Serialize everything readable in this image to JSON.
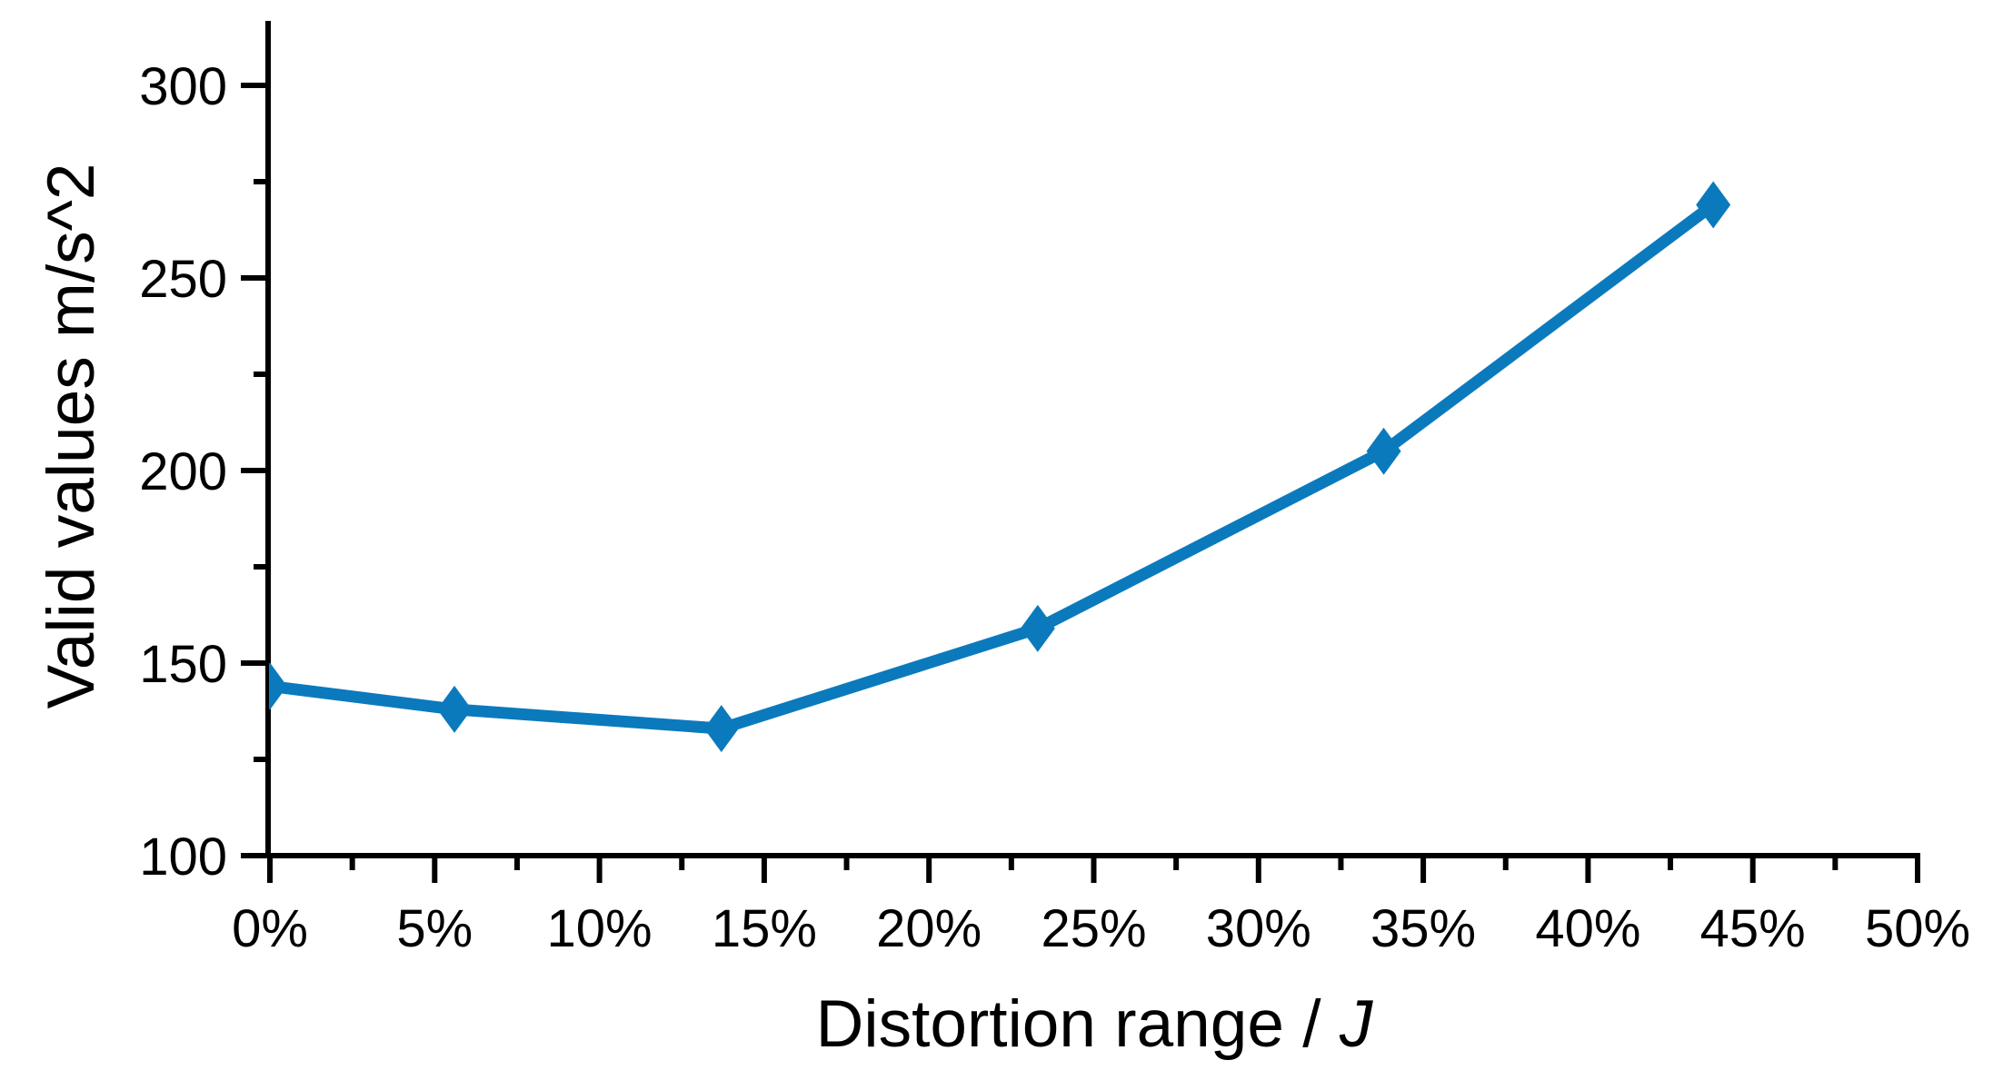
{
  "figure": {
    "background": "#ffffff",
    "axis_color": "#000000",
    "text_color": "#000000"
  },
  "chart_data": {
    "type": "line",
    "title": "",
    "xlabel_prefix": "Distortion range / ",
    "xlabel_italic": "J",
    "ylabel": "Valid values m/s^2",
    "grid": false,
    "legend": "none",
    "xlim": [
      0,
      50
    ],
    "ylim": [
      100,
      300
    ],
    "x_major_ticks": [
      0,
      5,
      10,
      15,
      20,
      25,
      30,
      35,
      40,
      45,
      50
    ],
    "x_tick_labels": [
      "0%",
      "5%",
      "10%",
      "15%",
      "20%",
      "25%",
      "30%",
      "35%",
      "40%",
      "45%",
      "50%"
    ],
    "x_minor_ticks": [
      2.5,
      7.5,
      12.5,
      17.5,
      22.5,
      27.5,
      32.5,
      37.5,
      42.5,
      47.5
    ],
    "y_major_ticks": [
      100,
      150,
      200,
      250,
      300
    ],
    "y_tick_labels": [
      "100",
      "150",
      "200",
      "250",
      "300"
    ],
    "y_minor_ticks": [
      125,
      175,
      225,
      275
    ],
    "series": [
      {
        "name": "Valid values",
        "color": "#0B7ABD",
        "marker": "diamond",
        "x": [
          0,
          5.6,
          13.7,
          23.3,
          33.8,
          43.8
        ],
        "y": [
          144,
          138,
          133,
          159,
          205,
          269
        ]
      }
    ]
  }
}
